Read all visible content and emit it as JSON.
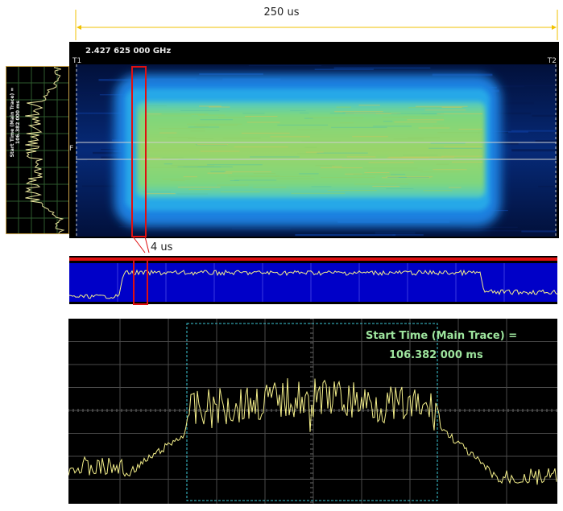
{
  "measure": {
    "span_label": "250 us",
    "zoom_label": "4 us"
  },
  "spectrogram": {
    "center_frequency": "2.427 625 000 GHz",
    "marker_t1": "T1",
    "marker_t2": "T2",
    "frequency_marker": "F"
  },
  "side_spectrum": {
    "label_line1": "Start Time (Main Trace) =",
    "label_line2": "106.382 000 ms"
  },
  "zoom_plot": {
    "start_time_line1": "Start Time (Main Trace) =",
    "start_time_line2": "106.382 000 ms"
  },
  "colors": {
    "measure_line": "#f2c200",
    "trace": "#f4ef8a",
    "grid": "#5a5a5a",
    "power_background": "#0000c8",
    "highlight_box": "#e01010",
    "window_dashed": "#3cc9d6",
    "annotation_text": "#9ee59e"
  }
}
